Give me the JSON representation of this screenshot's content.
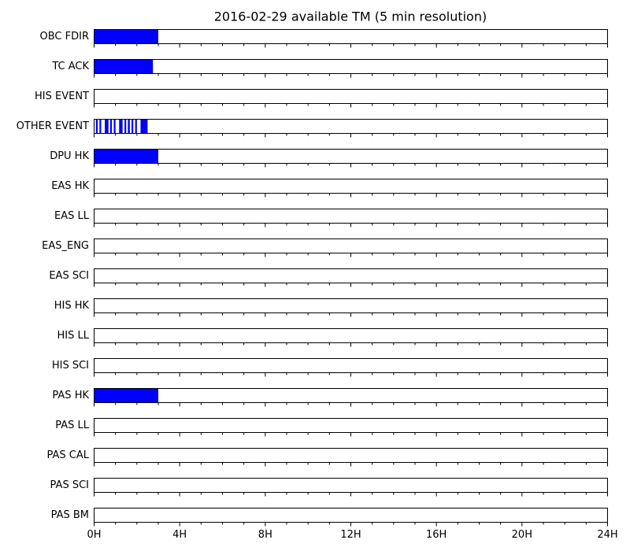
{
  "chart_data": {
    "type": "broken_barh",
    "title": "2016-02-29 available TM (5 min resolution)",
    "categories": [
      "OBC FDIR",
      "TC ACK",
      "HIS EVENT",
      "OTHER EVENT",
      "DPU HK",
      "EAS HK",
      "EAS LL",
      "EAS_ENG",
      "EAS SCI",
      "HIS HK",
      "HIS LL",
      "HIS SCI",
      "PAS HK",
      "PAS LL",
      "PAS CAL",
      "PAS SCI",
      "PAS BM"
    ],
    "intervals": [
      [
        [
          0,
          3
        ]
      ],
      [
        [
          0,
          2.75
        ]
      ],
      [],
      [
        [
          0.083,
          0.167
        ],
        [
          0.25,
          0.33
        ],
        [
          0.5,
          0.67
        ],
        [
          0.75,
          0.83
        ],
        [
          0.92,
          1.0
        ],
        [
          1.17,
          1.33
        ],
        [
          1.42,
          1.5
        ],
        [
          1.58,
          1.67
        ],
        [
          1.75,
          1.83
        ],
        [
          1.92,
          2.0
        ],
        [
          2.17,
          2.5
        ]
      ],
      [
        [
          0,
          3
        ]
      ],
      [],
      [],
      [],
      [],
      [],
      [],
      [],
      [
        [
          0,
          3
        ]
      ],
      [],
      [],
      [],
      []
    ],
    "color": "#0000ff",
    "xlim": [
      0,
      24
    ],
    "xticks": [
      {
        "value": 0,
        "label": "0H"
      },
      {
        "value": 4,
        "label": "4H"
      },
      {
        "value": 8,
        "label": "8H"
      },
      {
        "value": 12,
        "label": "12H"
      },
      {
        "value": 16,
        "label": "16H"
      },
      {
        "value": 20,
        "label": "20H"
      },
      {
        "value": 24,
        "label": "24H"
      }
    ],
    "xminor_ticks": [
      1,
      2,
      3,
      5,
      6,
      7,
      9,
      10,
      11,
      13,
      14,
      15,
      17,
      18,
      19,
      21,
      22,
      23
    ]
  }
}
